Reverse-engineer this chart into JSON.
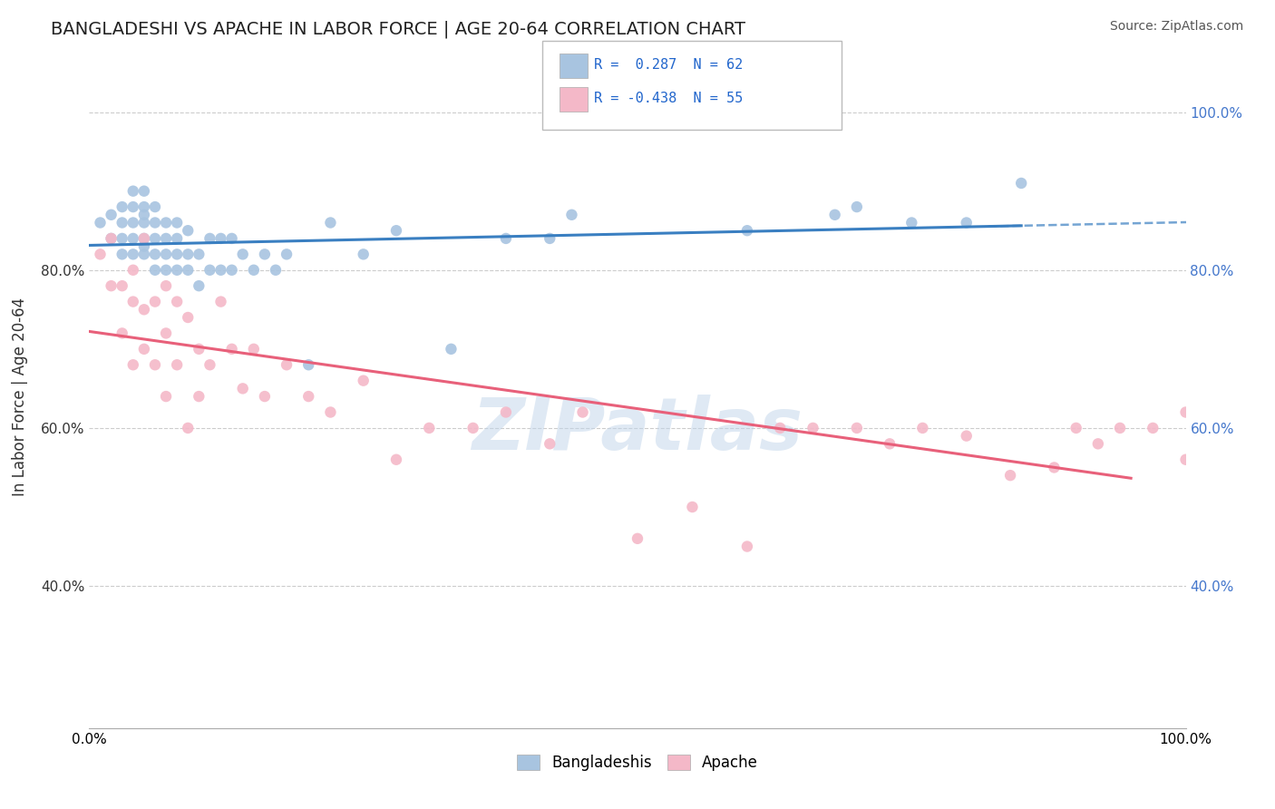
{
  "title": "BANGLADESHI VS APACHE IN LABOR FORCE | AGE 20-64 CORRELATION CHART",
  "source": "Source: ZipAtlas.com",
  "ylabel": "In Labor Force | Age 20-64",
  "xlim": [
    0.0,
    1.0
  ],
  "ylim": [
    0.22,
    1.06
  ],
  "legend_color1": "#a8c4e0",
  "legend_color2": "#f4b8c8",
  "line_color1": "#3a7fc1",
  "line_color2": "#e8607a",
  "scatter_color1": "#a8c4e0",
  "scatter_color2": "#f4b8c8",
  "watermark": "ZIPatlas",
  "grid_color": "#cccccc",
  "bg_color": "#ffffff",
  "title_color": "#222222",
  "bangladeshi_x": [
    0.01,
    0.02,
    0.02,
    0.03,
    0.03,
    0.03,
    0.03,
    0.04,
    0.04,
    0.04,
    0.04,
    0.04,
    0.05,
    0.05,
    0.05,
    0.05,
    0.05,
    0.05,
    0.05,
    0.06,
    0.06,
    0.06,
    0.06,
    0.06,
    0.07,
    0.07,
    0.07,
    0.07,
    0.08,
    0.08,
    0.08,
    0.08,
    0.09,
    0.09,
    0.09,
    0.1,
    0.1,
    0.11,
    0.11,
    0.12,
    0.12,
    0.13,
    0.13,
    0.14,
    0.15,
    0.16,
    0.17,
    0.18,
    0.2,
    0.22,
    0.25,
    0.28,
    0.33,
    0.38,
    0.42,
    0.44,
    0.6,
    0.68,
    0.7,
    0.75,
    0.8,
    0.85
  ],
  "bangladeshi_y": [
    0.86,
    0.84,
    0.87,
    0.82,
    0.84,
    0.86,
    0.88,
    0.82,
    0.84,
    0.86,
    0.88,
    0.9,
    0.82,
    0.83,
    0.84,
    0.86,
    0.87,
    0.88,
    0.9,
    0.8,
    0.82,
    0.84,
    0.86,
    0.88,
    0.8,
    0.82,
    0.84,
    0.86,
    0.8,
    0.82,
    0.84,
    0.86,
    0.8,
    0.82,
    0.85,
    0.78,
    0.82,
    0.8,
    0.84,
    0.8,
    0.84,
    0.8,
    0.84,
    0.82,
    0.8,
    0.82,
    0.8,
    0.82,
    0.68,
    0.86,
    0.82,
    0.85,
    0.7,
    0.84,
    0.84,
    0.87,
    0.85,
    0.87,
    0.88,
    0.86,
    0.86,
    0.91
  ],
  "apache_x": [
    0.01,
    0.02,
    0.02,
    0.03,
    0.03,
    0.04,
    0.04,
    0.04,
    0.05,
    0.05,
    0.05,
    0.06,
    0.06,
    0.07,
    0.07,
    0.07,
    0.08,
    0.08,
    0.09,
    0.09,
    0.1,
    0.1,
    0.11,
    0.12,
    0.13,
    0.14,
    0.15,
    0.16,
    0.18,
    0.2,
    0.22,
    0.25,
    0.28,
    0.31,
    0.35,
    0.38,
    0.42,
    0.45,
    0.5,
    0.55,
    0.6,
    0.63,
    0.66,
    0.7,
    0.73,
    0.76,
    0.8,
    0.84,
    0.88,
    0.9,
    0.92,
    0.94,
    0.97,
    1.0,
    1.0
  ],
  "apache_y": [
    0.82,
    0.78,
    0.84,
    0.78,
    0.72,
    0.76,
    0.8,
    0.68,
    0.75,
    0.7,
    0.84,
    0.76,
    0.68,
    0.78,
    0.72,
    0.64,
    0.76,
    0.68,
    0.74,
    0.6,
    0.7,
    0.64,
    0.68,
    0.76,
    0.7,
    0.65,
    0.7,
    0.64,
    0.68,
    0.64,
    0.62,
    0.66,
    0.56,
    0.6,
    0.6,
    0.62,
    0.58,
    0.62,
    0.46,
    0.5,
    0.45,
    0.6,
    0.6,
    0.6,
    0.58,
    0.6,
    0.59,
    0.54,
    0.55,
    0.6,
    0.58,
    0.6,
    0.6,
    0.62,
    0.56
  ],
  "r1": 0.287,
  "n1": 62,
  "r2": -0.438,
  "n2": 55
}
